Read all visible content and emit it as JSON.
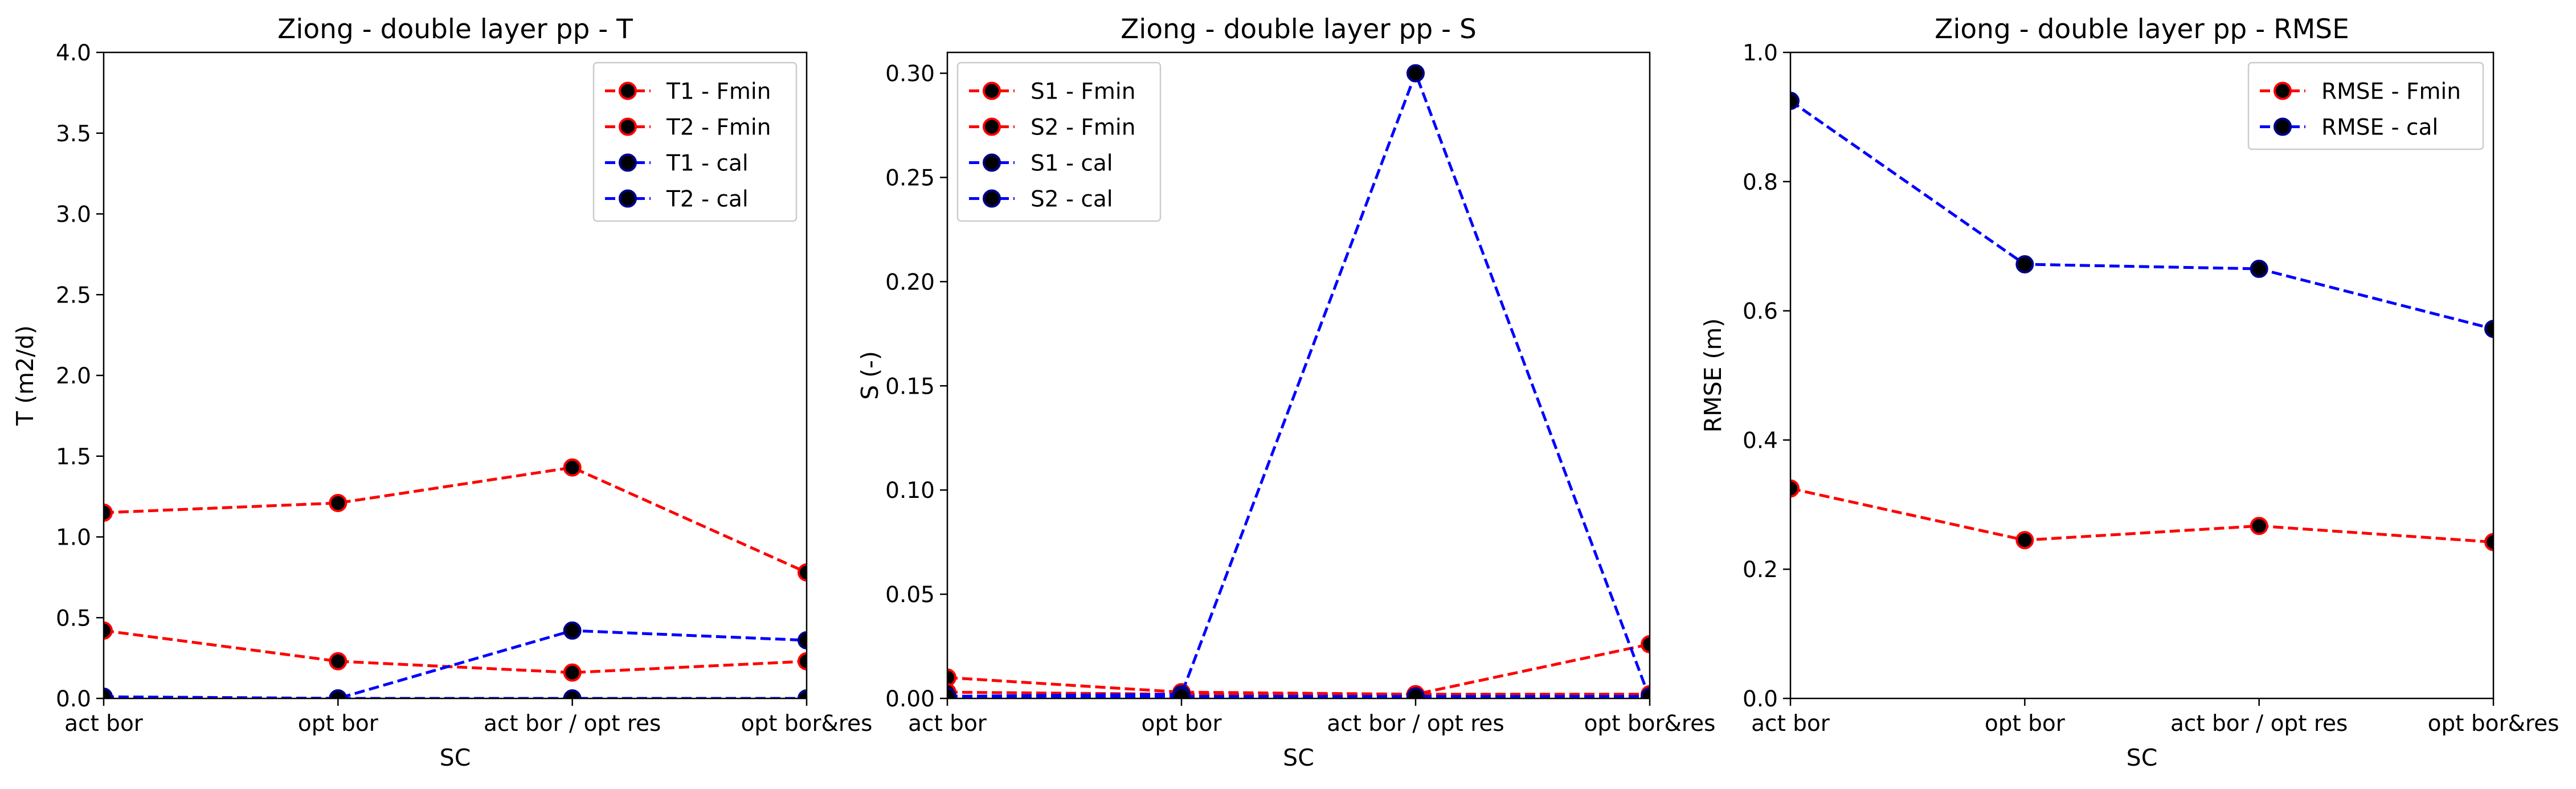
{
  "chart_data": [
    {
      "type": "line",
      "title": "Ziong - double layer pp - T",
      "xlabel": "SC",
      "ylabel": "T (m2/d)",
      "categories": [
        "act bor",
        "opt bor",
        "act bor / opt res",
        "opt bor&res"
      ],
      "ylim": [
        0,
        4.0
      ],
      "yticks": [
        "0.0",
        "0.5",
        "1.0",
        "1.5",
        "2.0",
        "2.5",
        "3.0",
        "3.5",
        "4.0"
      ],
      "legend_position": "upper right",
      "series": [
        {
          "name": "T1 - Fmin",
          "color": "#ff0000",
          "marker_edge": "#ff0000",
          "values": [
            1.15,
            1.21,
            1.43,
            0.78
          ]
        },
        {
          "name": "T2 - Fmin",
          "color": "#ff0000",
          "marker_edge": "#ff0000",
          "values": [
            0.42,
            0.23,
            0.16,
            0.23
          ]
        },
        {
          "name": "T1 - cal",
          "color": "#0000ff",
          "marker_edge": "#00008b",
          "values": [
            0.01,
            0.0,
            0.42,
            0.36
          ]
        },
        {
          "name": "T2 - cal",
          "color": "#0000ff",
          "marker_edge": "#00008b",
          "values": [
            0.01,
            0.0,
            0.0,
            0.0
          ]
        }
      ]
    },
    {
      "type": "line",
      "title": "Ziong - double layer pp - S",
      "xlabel": "SC",
      "ylabel": "S (-)",
      "categories": [
        "act bor",
        "opt bor",
        "act bor / opt res",
        "opt bor&res"
      ],
      "ylim": [
        0,
        0.31
      ],
      "yticks": [
        "0.00",
        "0.05",
        "0.10",
        "0.15",
        "0.20",
        "0.25",
        "0.30"
      ],
      "legend_position": "upper left",
      "series": [
        {
          "name": "S1 - Fmin",
          "color": "#ff0000",
          "marker_edge": "#ff0000",
          "values": [
            0.01,
            0.003,
            0.002,
            0.026
          ]
        },
        {
          "name": "S2 - Fmin",
          "color": "#ff0000",
          "marker_edge": "#ff0000",
          "values": [
            0.003,
            0.002,
            0.002,
            0.002
          ]
        },
        {
          "name": "S1 - cal",
          "color": "#0000ff",
          "marker_edge": "#00008b",
          "values": [
            0.001,
            0.002,
            0.3,
            0.0
          ]
        },
        {
          "name": "S2 - cal",
          "color": "#0000ff",
          "marker_edge": "#00008b",
          "values": [
            0.001,
            0.001,
            0.001,
            0.001
          ]
        }
      ]
    },
    {
      "type": "line",
      "title": "Ziong - double layer pp - RMSE",
      "xlabel": "SC",
      "ylabel": "RMSE (m)",
      "categories": [
        "act bor",
        "opt bor",
        "act bor / opt res",
        "opt bor&res"
      ],
      "ylim": [
        0,
        1.0
      ],
      "yticks": [
        "0.0",
        "0.2",
        "0.4",
        "0.6",
        "0.8",
        "1.0"
      ],
      "legend_position": "upper right",
      "series": [
        {
          "name": "RMSE - Fmin",
          "color": "#ff0000",
          "marker_edge": "#ff0000",
          "values": [
            0.325,
            0.245,
            0.267,
            0.242
          ]
        },
        {
          "name": "RMSE - cal",
          "color": "#0000ff",
          "marker_edge": "#00008b",
          "values": [
            0.925,
            0.672,
            0.665,
            0.572
          ]
        }
      ]
    }
  ]
}
